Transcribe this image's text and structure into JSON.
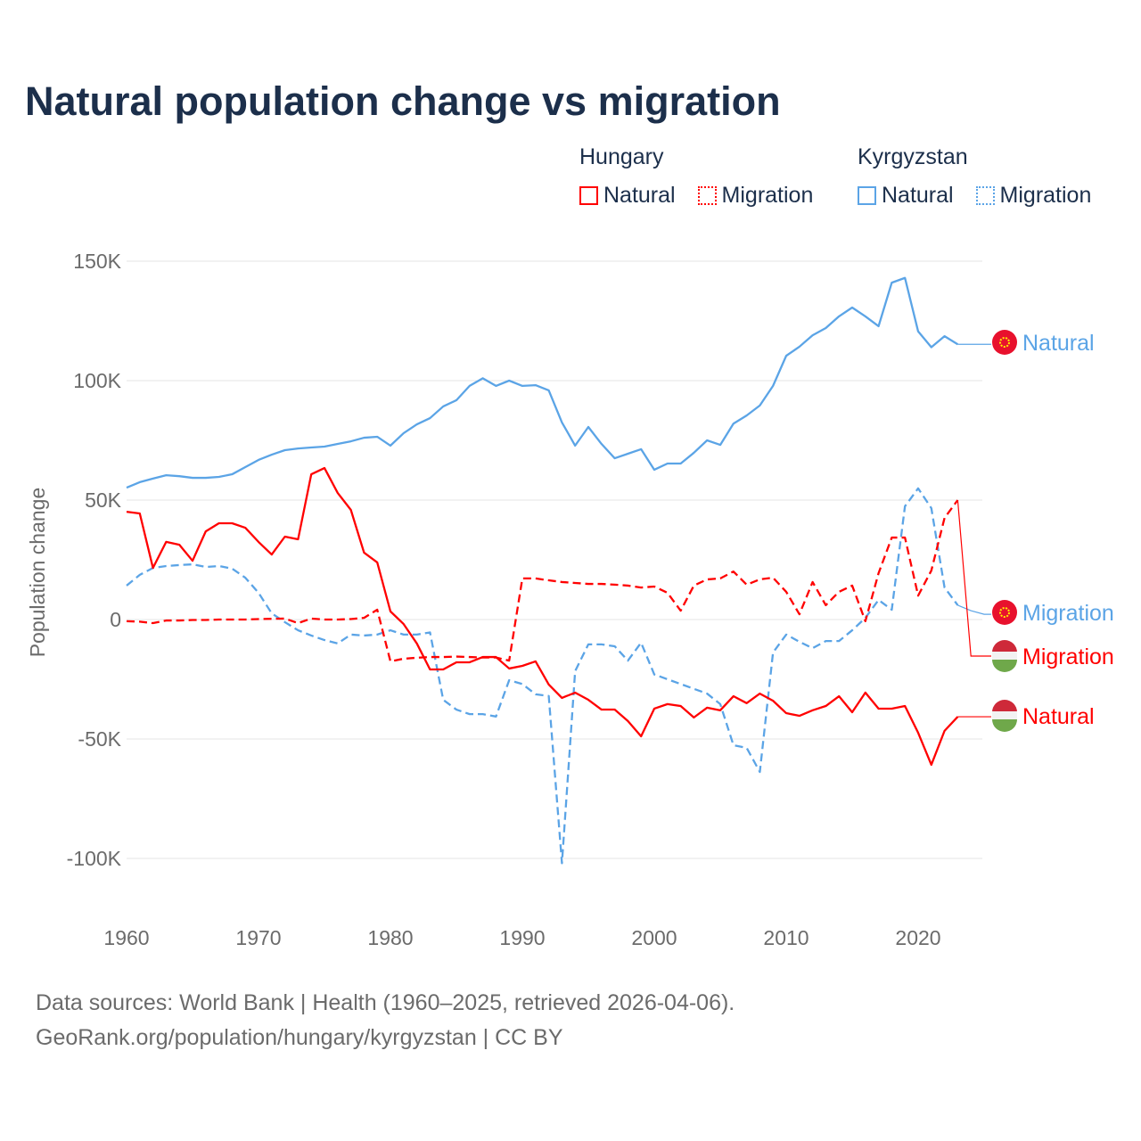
{
  "chart_data": {
    "type": "line",
    "title": "Natural population change vs migration",
    "ylabel": "Population change",
    "xlabel": "",
    "ylim": [
      -110000,
      155000
    ],
    "xlim": [
      1960,
      2025
    ],
    "grid": true,
    "y_ticks": [
      {
        "v": 150000,
        "label": "150K"
      },
      {
        "v": 100000,
        "label": "100K"
      },
      {
        "v": 50000,
        "label": "50K"
      },
      {
        "v": 0,
        "label": "0"
      },
      {
        "v": -50000,
        "label": "-50K"
      },
      {
        "v": -100000,
        "label": "-100K"
      }
    ],
    "x_ticks": [
      {
        "v": 1960,
        "label": "1960"
      },
      {
        "v": 1970,
        "label": "1970"
      },
      {
        "v": 1980,
        "label": "1980"
      },
      {
        "v": 1990,
        "label": "1990"
      },
      {
        "v": 2000,
        "label": "2000"
      },
      {
        "v": 2010,
        "label": "2010"
      },
      {
        "v": 2020,
        "label": "2020"
      }
    ],
    "x_start": 1960,
    "legend": {
      "placement": "top-right",
      "groups": [
        {
          "title": "Hungary",
          "items": [
            {
              "label": "Natural",
              "style": "solid"
            },
            {
              "label": "Migration",
              "style": "dotted"
            }
          ],
          "color": "#ff0000"
        },
        {
          "title": "Kyrgyzstan",
          "items": [
            {
              "label": "Natural",
              "style": "solid"
            },
            {
              "label": "Migration",
              "style": "dotted"
            }
          ],
          "color": "#5ba4e6"
        }
      ]
    },
    "series": [
      {
        "name": "Kyrgyzstan Natural",
        "country": "Kyrgyzstan",
        "kind": "Natural",
        "color": "#5ba4e6",
        "dashed": false,
        "end_label": "Natural",
        "values": [
          55.2,
          57.5,
          59,
          60.4,
          60,
          59.3,
          59.3,
          59.7,
          60.8,
          63.8,
          66.8,
          69,
          70.9,
          71.6,
          72,
          72.4,
          73.5,
          74.6,
          76.1,
          76.5,
          72.8,
          78,
          81.7,
          84.3,
          89.2,
          91.8,
          97.8,
          101,
          97.8,
          100,
          97.8,
          98.1,
          95.9,
          82.5,
          72.8,
          80.6,
          73.5,
          67.5,
          69.4,
          71.3,
          62.7,
          65.3,
          65.3,
          69.8,
          75,
          73.1,
          82,
          85.4,
          89.6,
          97.8,
          110.4,
          114.2,
          119,
          122,
          126.9,
          130.6,
          126.9,
          122.8,
          141,
          143,
          120.6,
          114,
          118.6,
          115.2,
          115.2,
          115.2
        ]
      },
      {
        "name": "Kyrgyzstan Migration",
        "country": "Kyrgyzstan",
        "kind": "Migration",
        "color": "#5ba4e6",
        "dashed": true,
        "end_label": "Migration",
        "values": [
          14.2,
          18.7,
          21.6,
          22.4,
          22.8,
          23.1,
          22,
          22.4,
          21.3,
          17.5,
          11.2,
          2.6,
          -1.1,
          -4.5,
          -6.7,
          -8.6,
          -10,
          -6.3,
          -6.7,
          -6.3,
          -4.5,
          -6.3,
          -6.3,
          -5.4,
          -33.6,
          -37.7,
          -39.6,
          -39.6,
          -40.6,
          -25.4,
          -27,
          -31.3,
          -32,
          -102,
          -21.6,
          -10.4,
          -10.4,
          -11.2,
          -17.2,
          -9.7,
          -23,
          -25,
          -27,
          -29,
          -31,
          -35.4,
          -52.6,
          -53.7,
          -63.8,
          -13.8,
          -6.3,
          -9.3,
          -12,
          -9,
          -9,
          -4.5,
          0.7,
          8.2,
          4.1,
          47.4,
          54.9,
          46.6,
          13.4,
          6,
          3.7,
          2.2
        ]
      },
      {
        "name": "Hungary Migration",
        "country": "Hungary",
        "kind": "Migration",
        "color": "#ff0000",
        "dashed": true,
        "end_label": "Migration",
        "values": [
          -0.7,
          -0.9,
          -1.5,
          -0.4,
          -0.4,
          -0.2,
          -0.2,
          0,
          0,
          0,
          0.2,
          0.3,
          0.4,
          -1.5,
          0.4,
          0,
          0,
          0.2,
          0.7,
          4.1,
          -17.5,
          -16.4,
          -16,
          -15.7,
          -15.7,
          -15.5,
          -15.7,
          -15.9,
          -15.9,
          -17.2,
          17.2,
          17.2,
          16.4,
          15.7,
          15.3,
          14.9,
          14.9,
          14.6,
          14.2,
          13.4,
          13.8,
          11.2,
          3.7,
          14.2,
          16.8,
          17.2,
          20.1,
          14.6,
          16.8,
          17.5,
          11.6,
          2.2,
          15.7,
          6,
          11.6,
          14.2,
          -0.7,
          19.4,
          34.3,
          34.3,
          10,
          20.5,
          42.5,
          50,
          -15.3,
          -15.3
        ]
      },
      {
        "name": "Hungary Natural",
        "country": "Hungary",
        "kind": "Natural",
        "color": "#ff0000",
        "dashed": false,
        "end_label": "Natural",
        "values": [
          45.1,
          44.4,
          21.6,
          32.5,
          31.3,
          24.6,
          36.9,
          40.3,
          40.3,
          38.4,
          32.5,
          27.2,
          34.7,
          33.6,
          60.8,
          63.4,
          53,
          45.9,
          28,
          23.9,
          3.4,
          -1.9,
          -10,
          -20.9,
          -20.9,
          -17.9,
          -17.9,
          -15.7,
          -15.7,
          -20.5,
          -19.4,
          -17.5,
          -27.2,
          -32.8,
          -30.6,
          -33.6,
          -37.7,
          -37.7,
          -42.5,
          -48.9,
          -37.3,
          -35.4,
          -36.2,
          -41,
          -36.9,
          -38,
          -32.1,
          -35,
          -31,
          -34,
          -39.2,
          -40.3,
          -38,
          -36.2,
          -32.1,
          -38.8,
          -30.6,
          -37.3,
          -37.3,
          -36.2,
          -47.4,
          -60.8,
          -46.6,
          -40.7,
          -40.7,
          -40.7
        ]
      }
    ],
    "value_unit": "thousands"
  },
  "footer": {
    "line1": "Data sources: World Bank | Health (1960–2025, retrieved 2026-04-06).",
    "line2": "GeoRank.org/population/hungary/kyrgyzstan | CC BY"
  }
}
